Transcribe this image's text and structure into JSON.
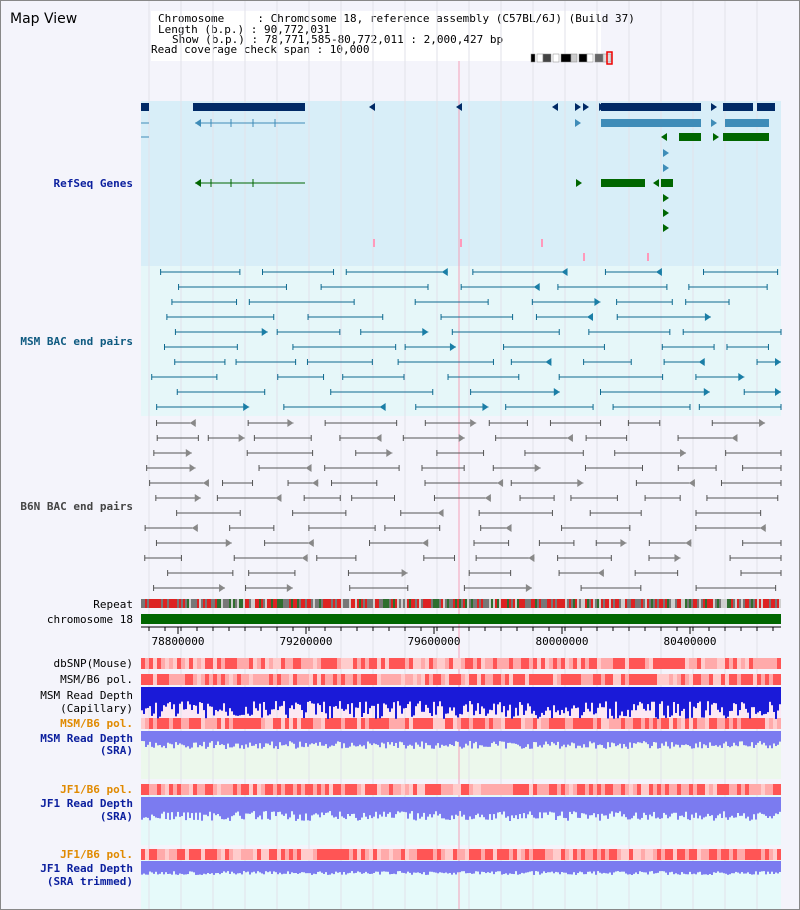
{
  "title": "Map View",
  "header": {
    "line1": "Chromosome     : Chromosome 18, reference assembly (C57BL/6J) (Build 37)",
    "line2": "Length (b.p.) : 90,772,031",
    "line3": "Show (b.p.) : 78,771,585-80,772,011 : 2,000,427 bp",
    "line4": "Read coverage check span : 10,000"
  },
  "tracks": {
    "refseq": "RefSeq Genes",
    "msm_bac": "MSM BAC end pairs",
    "b6n_bac": "B6N BAC end pairs",
    "repeat": "Repeat",
    "chromosome": "chromosome 18",
    "dbsnp": "dbSNP(Mouse)",
    "msm_b6_pol": "MSM/B6 pol.",
    "msm_depth_cap_1": "MSM Read Depth",
    "msm_depth_cap_2": "(Capillary)",
    "msm_b6_pol_sra": "MSM/B6 pol.",
    "msm_depth_sra_1": "MSM Read Depth",
    "msm_depth_sra_2": "(SRA)",
    "jf1_b6_pol": "JF1/B6 pol.",
    "jf1_depth_sra_1": "JF1 Read Depth",
    "jf1_depth_sra_2": "(SRA)",
    "jf1_b6_pol_trim": "JF1/B6 pol.",
    "jf1_depth_trim_1": "JF1 Read Depth",
    "jf1_depth_trim_2": "(SRA trimmed)"
  },
  "axis_ticks": [
    "78800000",
    "79200000",
    "79600000",
    "80000000",
    "80400000"
  ],
  "colors": {
    "refseq_bg": "#d8eef8",
    "bac_bg": "#e6f7f9",
    "b6n_bg": "#f4f4fb",
    "gene_dark": "#002a66",
    "gene_mid": "#3f8cb8",
    "gene_green": "#006600",
    "msm_pair": "#0e6a90",
    "b6n_pair": "#555555",
    "chrom_bar": "#006600",
    "depth_dark": "#1a1ad8",
    "depth_light": "#7b7bf0",
    "pol_red": "#ff5555",
    "pol_pink": "#ffaaaa"
  }
}
